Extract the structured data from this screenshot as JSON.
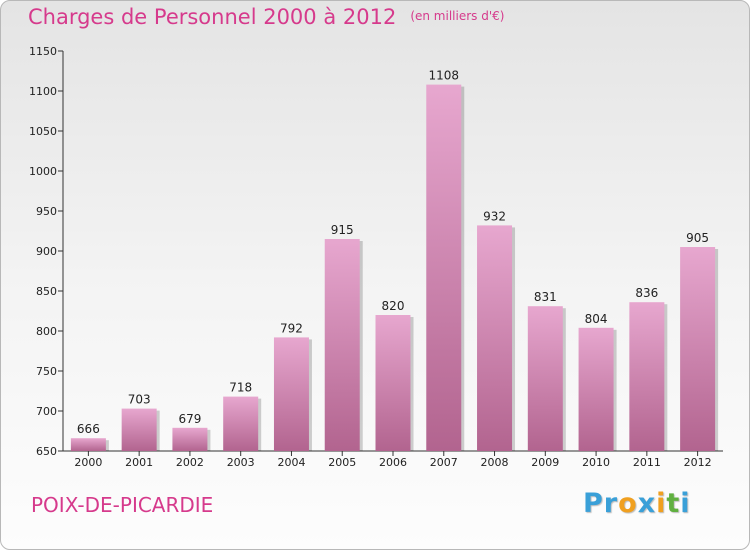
{
  "header": {
    "title": "Charges de Personnel 2000 à 2012",
    "unit": "(en milliers d'€)"
  },
  "footer": {
    "place": "POIX-DE-PICARDIE",
    "logo_letters": [
      "P",
      "r",
      "o",
      "x",
      "i",
      "t",
      "i"
    ]
  },
  "colors": {
    "title": "#d63a8c",
    "bar_top": "#e7a7cf",
    "bar_bottom": "#b2648f",
    "logo": [
      "#3aa0d8",
      "#3aa0d8",
      "#f0a020",
      "#3aa0d8",
      "#f0a020",
      "#60b040",
      "#3aa0d8"
    ]
  },
  "chart_data": {
    "type": "bar",
    "title": "Charges de Personnel 2000 à 2012",
    "subtitle": "(en milliers d'€)",
    "categories": [
      "2000",
      "2001",
      "2002",
      "2003",
      "2004",
      "2005",
      "2006",
      "2007",
      "2008",
      "2009",
      "2010",
      "2011",
      "2012"
    ],
    "values": [
      666,
      703,
      679,
      718,
      792,
      915,
      820,
      1108,
      932,
      831,
      804,
      836,
      905
    ],
    "ylim": [
      650,
      1150
    ],
    "yticks": [
      650,
      700,
      750,
      800,
      850,
      900,
      950,
      1000,
      1050,
      1100,
      1150
    ],
    "grid": false,
    "data_labels": true
  }
}
